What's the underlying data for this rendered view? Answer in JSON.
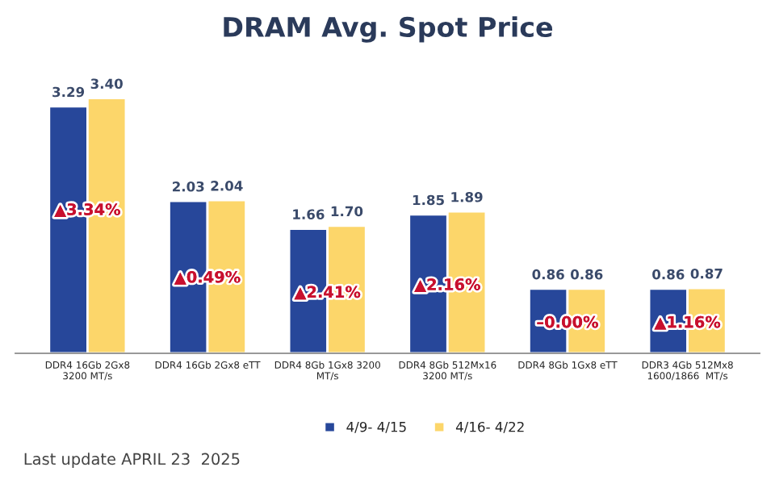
{
  "chart_data": {
    "type": "bar",
    "title": "DRAM Avg. Spot Price",
    "categories": [
      "DDR4 16Gb 2Gx8\n3200 MT/s",
      "DDR4 16Gb 2Gx8 eTT",
      "DDR4 8Gb 1Gx8 3200\nMT/s",
      "DDR4 8Gb 512Mx16\n3200 MT/s",
      "DDR4 8Gb 1Gx8 eTT",
      "DDR3 4Gb 512Mx8\n1600/1866  MT/s"
    ],
    "series": [
      {
        "name": "4/9- 4/15",
        "color": "#27479a",
        "values": [
          3.29,
          2.03,
          1.66,
          1.85,
          0.86,
          0.86
        ],
        "value_labels": [
          "3.29",
          "2.03",
          "1.66",
          "1.85",
          "0.86",
          "0.86"
        ]
      },
      {
        "name": "4/16- 4/22",
        "color": "#fcd66a",
        "values": [
          3.4,
          2.04,
          1.7,
          1.89,
          0.86,
          0.87
        ],
        "value_labels": [
          "3.40",
          "2.04",
          "1.70",
          "1.89",
          "0.86",
          "0.87"
        ]
      }
    ],
    "tick_labels": "x",
    "legend": "bottom",
    "annotations": [
      {
        "text": "▲3.34%",
        "x": "DDR4 16Gb 2Gx8\n3200 MT/s",
        "y": 1.9
      },
      {
        "text": "▲0.49%",
        "x": "DDR4 16Gb 2Gx8 eTT",
        "y": 1.0
      },
      {
        "text": "▲2.41%",
        "x": "DDR4 8Gb 1Gx8 3200\nMT/s",
        "y": 0.8
      },
      {
        "text": "▲2.16%",
        "x": "DDR4 8Gb 512Mx16\n3200 MT/s",
        "y": 0.9
      },
      {
        "text": "–0.00%",
        "x": "DDR4 8Gb 1Gx8 eTT",
        "y": 0.4
      },
      {
        "text": "▲1.16%",
        "x": "DDR3 4Gb 512Mx8\n1600/1866  MT/s",
        "y": 0.4
      },
      "Last update APRIL 23  2025"
    ]
  }
}
